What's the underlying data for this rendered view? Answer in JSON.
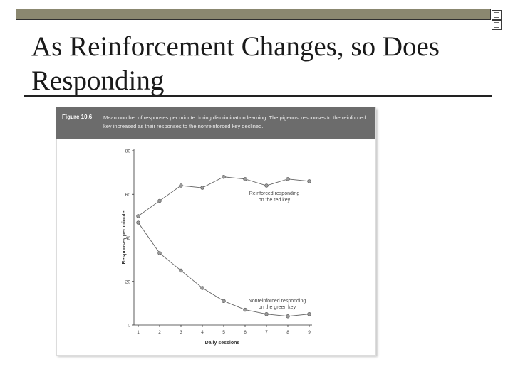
{
  "slide": {
    "title": "As Reinforcement Changes, so Does Responding"
  },
  "figure": {
    "label": "Figure 10.6",
    "caption": "Mean number of responses per minute during discrimination learning. The pigeons' responses to the reinforced key increased as their responses to the nonreinforced key declined."
  },
  "colors": {
    "header_bar": "#8b8870",
    "figure_header": "#6c6c6c",
    "line": "#666666",
    "marker": "#9a9a9a"
  },
  "chart_data": {
    "type": "line",
    "xlabel": "Daily sessions",
    "ylabel": "Responses per minute",
    "x": [
      1,
      2,
      3,
      4,
      5,
      6,
      7,
      8,
      9
    ],
    "xlim": [
      1,
      9
    ],
    "ylim": [
      0,
      80
    ],
    "yticks": [
      0,
      20,
      40,
      60,
      80
    ],
    "grid": false,
    "series": [
      {
        "name": "Reinforced responding on the red key",
        "label_lines": [
          "Reinforced responding",
          "on the red key"
        ],
        "values": [
          50,
          57,
          64,
          63,
          68,
          67,
          64,
          67,
          66
        ]
      },
      {
        "name": "Nonreinforced responding on the green key",
        "label_lines": [
          "Nonreinforced responding",
          "on the green key"
        ],
        "values": [
          47,
          33,
          25,
          17,
          11,
          7,
          5,
          4,
          5
        ]
      }
    ]
  }
}
